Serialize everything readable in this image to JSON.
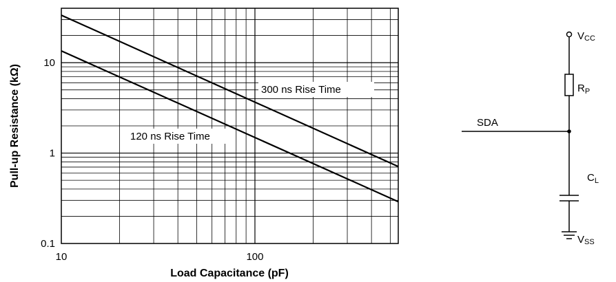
{
  "chart_data": {
    "type": "line",
    "title": "",
    "xlabel": "Load Capacitance (pF)",
    "ylabel": "Pull-up Resistance (kΩ)",
    "x_scale": "log",
    "y_scale": "log",
    "xlim": [
      10,
      550
    ],
    "ylim": [
      0.1,
      40
    ],
    "x_ticks": [
      {
        "value": 10,
        "label": "10"
      },
      {
        "value": 100,
        "label": "100"
      }
    ],
    "y_ticks": [
      {
        "value": 0.1,
        "label": "0.1"
      },
      {
        "value": 1,
        "label": "1"
      },
      {
        "value": 10,
        "label": "10"
      }
    ],
    "grid": true,
    "series": [
      {
        "name": "120 ns Rise Time",
        "x": [
          10,
          550
        ],
        "y": [
          13.5,
          0.29
        ]
      },
      {
        "name": "300 ns Rise Time",
        "x": [
          10,
          550
        ],
        "y": [
          33.5,
          0.71
        ]
      }
    ]
  },
  "schematic": {
    "vcc": {
      "main": "V",
      "sub": "CC"
    },
    "rp": {
      "main": "R",
      "sub": "P"
    },
    "sda": "SDA",
    "cl": {
      "main": "C",
      "sub": "L"
    },
    "vss": {
      "main": "V",
      "sub": "SS"
    }
  }
}
